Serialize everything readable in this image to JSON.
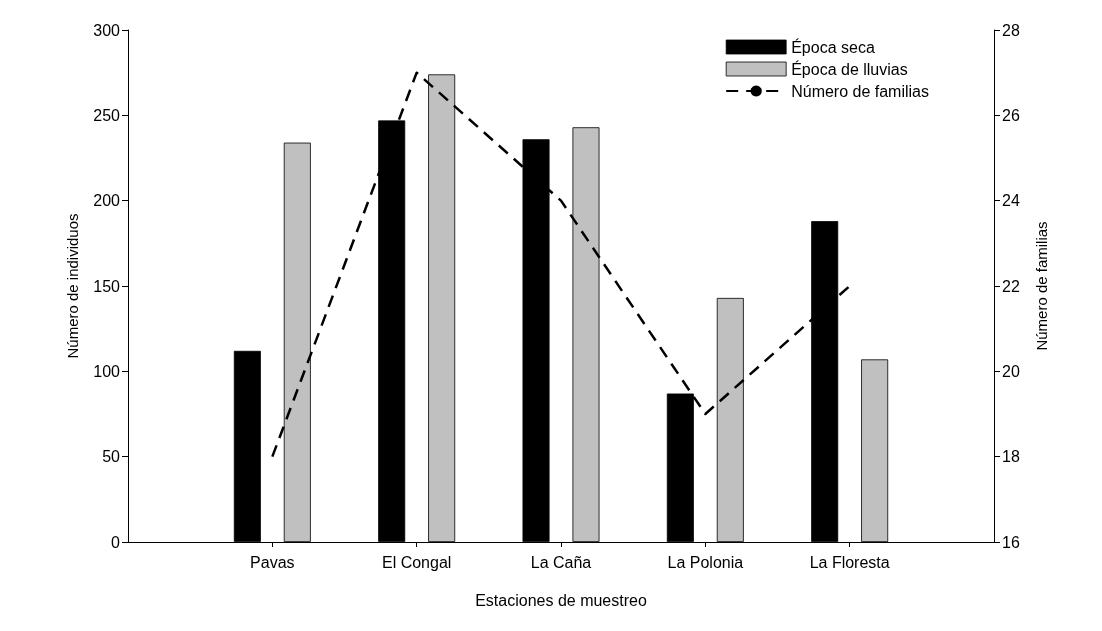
{
  "chart_data": {
    "type": "bar",
    "xlabel": "Estaciones de muestreo",
    "ylabel": "Número de individuos",
    "y2label": "Número de familias",
    "categories": [
      "Pavas",
      "El Congal",
      "La Caña",
      "La Polonia",
      "La Floresta"
    ],
    "series": [
      {
        "name": "Época seca",
        "color": "#000000",
        "values": [
          112,
          247,
          236,
          87,
          188
        ]
      },
      {
        "name": "Época de lluvias",
        "color": "#c0c0c0",
        "values": [
          234,
          274,
          243,
          143,
          107
        ]
      },
      {
        "name": "Número de familias",
        "type": "line",
        "axis": "y2",
        "color": "#000000",
        "line_style": "dashed",
        "marker": "none",
        "values": [
          18,
          27,
          24,
          19,
          22
        ]
      }
    ],
    "ylim": [
      0,
      300
    ],
    "yticks": [
      0,
      50,
      100,
      150,
      200,
      250,
      300
    ],
    "y2lim": [
      16,
      28
    ],
    "y2ticks": [
      16,
      18,
      20,
      22,
      24,
      26,
      28
    ],
    "grid": false,
    "legend": "top right"
  }
}
